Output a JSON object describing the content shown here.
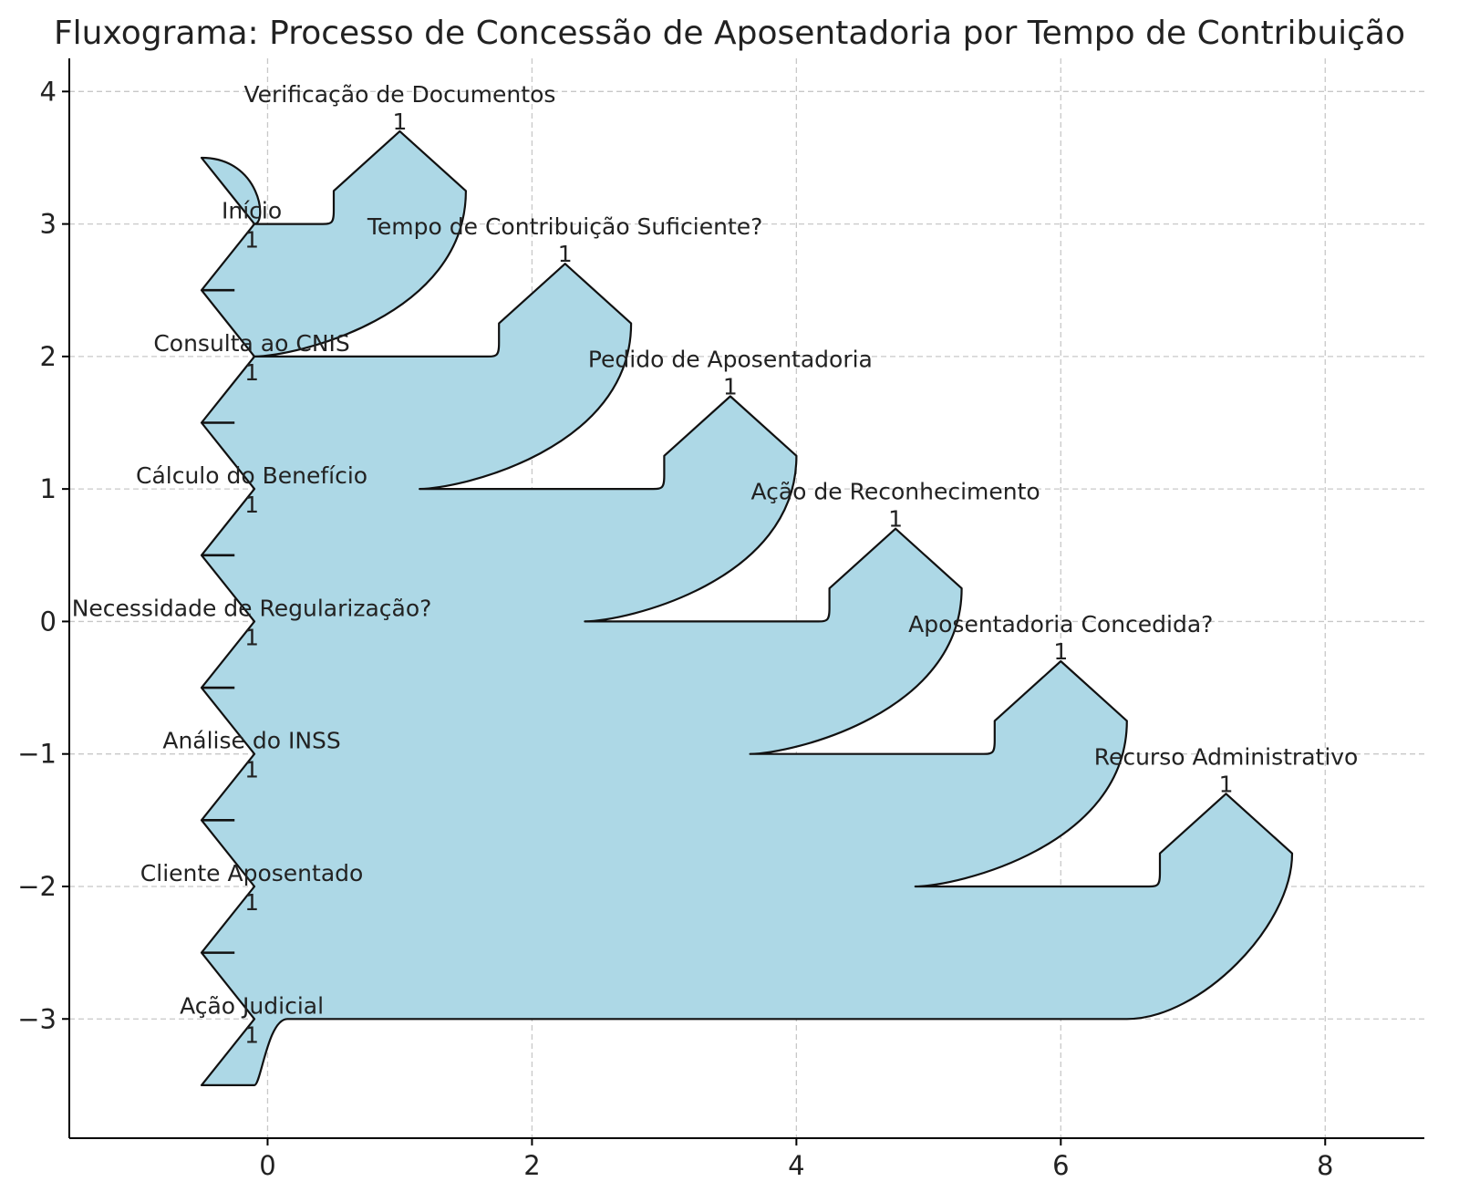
{
  "title": "Fluxograma: Processo de Concessão de Aposentadoria por Tempo de Contribuição",
  "axes": {
    "x_ticks": [
      "0",
      "2",
      "4",
      "6",
      "8"
    ],
    "y_ticks": [
      "4",
      "3",
      "2",
      "1",
      "0",
      "−1",
      "−2",
      "−3"
    ],
    "xlim": [
      -1.5,
      8.75
    ],
    "ylim": [
      -3.9,
      4.25
    ],
    "grid": true
  },
  "colors": {
    "fill": "#add8e6",
    "edge": "#111111",
    "grid": "#c8c8c8"
  },
  "flow_value": "1",
  "inputs": [
    {
      "label": "Início",
      "y": 3
    },
    {
      "label": "Consulta ao CNIS",
      "y": 2
    },
    {
      "label": "Cálculo do Benefício",
      "y": 1
    },
    {
      "label": "Necessidade de Regularização?",
      "y": 0
    },
    {
      "label": "Análise do INSS",
      "y": -1
    },
    {
      "label": "Cliente Aposentado",
      "y": -2
    },
    {
      "label": "Ação Judicial",
      "y": -3
    }
  ],
  "outputs": [
    {
      "label": "Verificação de Documentos",
      "x": 1.0,
      "y": 3.7
    },
    {
      "label": "Tempo de Contribuição Suficiente?",
      "x": 2.25,
      "y": 2.7
    },
    {
      "label": "Pedido de Aposentadoria",
      "x": 3.5,
      "y": 1.7
    },
    {
      "label": "Ação de Reconhecimento",
      "x": 4.75,
      "y": 0.7
    },
    {
      "label": "Aposentadoria Concedida?",
      "x": 6.0,
      "y": -0.3
    },
    {
      "label": "Recurso Administrativo",
      "x": 7.25,
      "y": -1.3
    }
  ]
}
